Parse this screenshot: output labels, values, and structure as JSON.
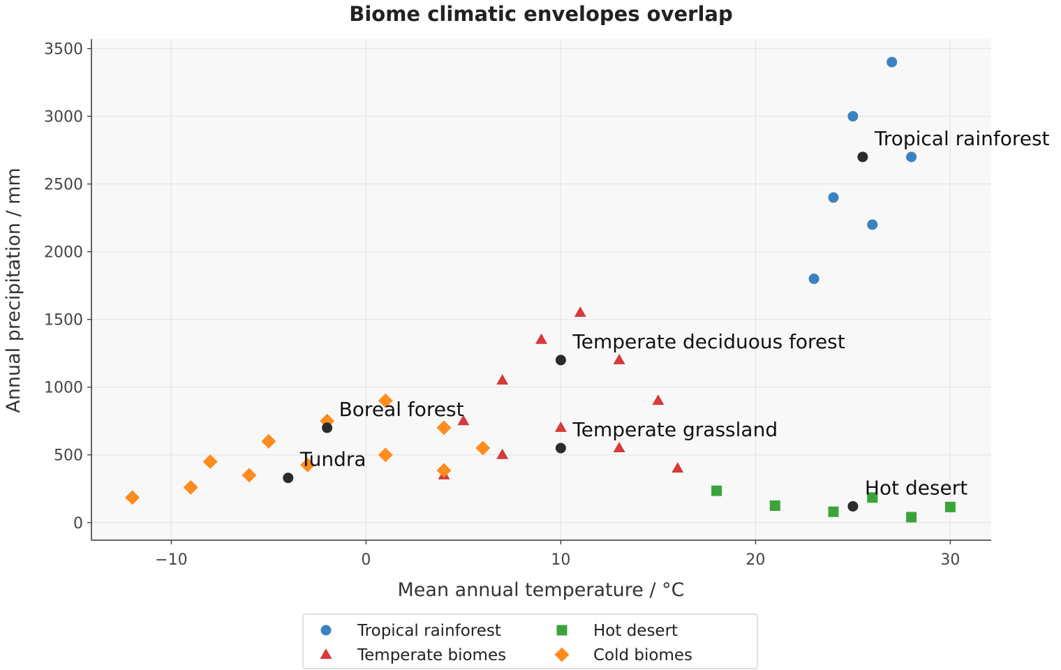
{
  "chart_data": {
    "type": "scatter",
    "title": "Biome climatic envelopes overlap",
    "xlabel": "Mean annual temperature / °C",
    "ylabel": "Annual precipitation / mm",
    "xlim": [
      -14.1,
      32.1
    ],
    "ylim": [
      -130,
      3570
    ],
    "xticks": [
      -10,
      0,
      10,
      20,
      30
    ],
    "xtick_labels": [
      "−10",
      "0",
      "10",
      "20",
      "30"
    ],
    "yticks": [
      0,
      500,
      1000,
      1500,
      2000,
      2500,
      3000,
      3500
    ],
    "ytick_labels": [
      "0",
      "500",
      "1000",
      "1500",
      "2000",
      "2500",
      "3000",
      "3500"
    ],
    "grid": true,
    "legend_position": "bottom-center",
    "series": [
      {
        "name": "Tropical rainforest",
        "marker": "circle",
        "color": "#3b82c0",
        "points": [
          [
            27,
            3400
          ],
          [
            25,
            3000
          ],
          [
            28,
            2700
          ],
          [
            24,
            2400
          ],
          [
            26,
            2200
          ],
          [
            23,
            1800
          ]
        ]
      },
      {
        "name": "Hot desert",
        "marker": "square",
        "color": "#3aa43a",
        "points": [
          [
            18,
            235
          ],
          [
            21,
            125
          ],
          [
            24,
            80
          ],
          [
            26,
            185
          ],
          [
            28,
            40
          ],
          [
            30,
            115
          ]
        ]
      },
      {
        "name": "Temperate biomes",
        "marker": "triangle",
        "color": "#d63a3a",
        "points": [
          [
            11,
            1550
          ],
          [
            9,
            1350
          ],
          [
            13,
            1200
          ],
          [
            7,
            1050
          ],
          [
            15,
            900
          ],
          [
            5,
            750
          ],
          [
            10,
            700
          ],
          [
            13,
            550
          ],
          [
            7,
            500
          ],
          [
            16,
            400
          ],
          [
            4,
            350
          ]
        ]
      },
      {
        "name": "Cold biomes",
        "marker": "diamond",
        "color": "#ff8c1e",
        "points": [
          [
            1,
            900
          ],
          [
            -2,
            750
          ],
          [
            4,
            700
          ],
          [
            -5,
            600
          ],
          [
            6,
            550
          ],
          [
            1,
            500
          ],
          [
            -8,
            450
          ],
          [
            -3,
            425
          ],
          [
            4,
            385
          ],
          [
            -6,
            350
          ],
          [
            -9,
            260
          ],
          [
            -12,
            185
          ]
        ]
      }
    ],
    "centroids": {
      "color": "#2b2b2b",
      "points": [
        {
          "label": "Tropical rainforest",
          "x": 25.5,
          "y": 2700
        },
        {
          "label": "Temperate deciduous forest",
          "x": 10,
          "y": 1200
        },
        {
          "label": "Boreal forest",
          "x": -2,
          "y": 700
        },
        {
          "label": "Temperate grassland",
          "x": 10,
          "y": 550
        },
        {
          "label": "Tundra",
          "x": -4,
          "y": 330
        },
        {
          "label": "Hot desert",
          "x": 25,
          "y": 120
        }
      ]
    }
  }
}
